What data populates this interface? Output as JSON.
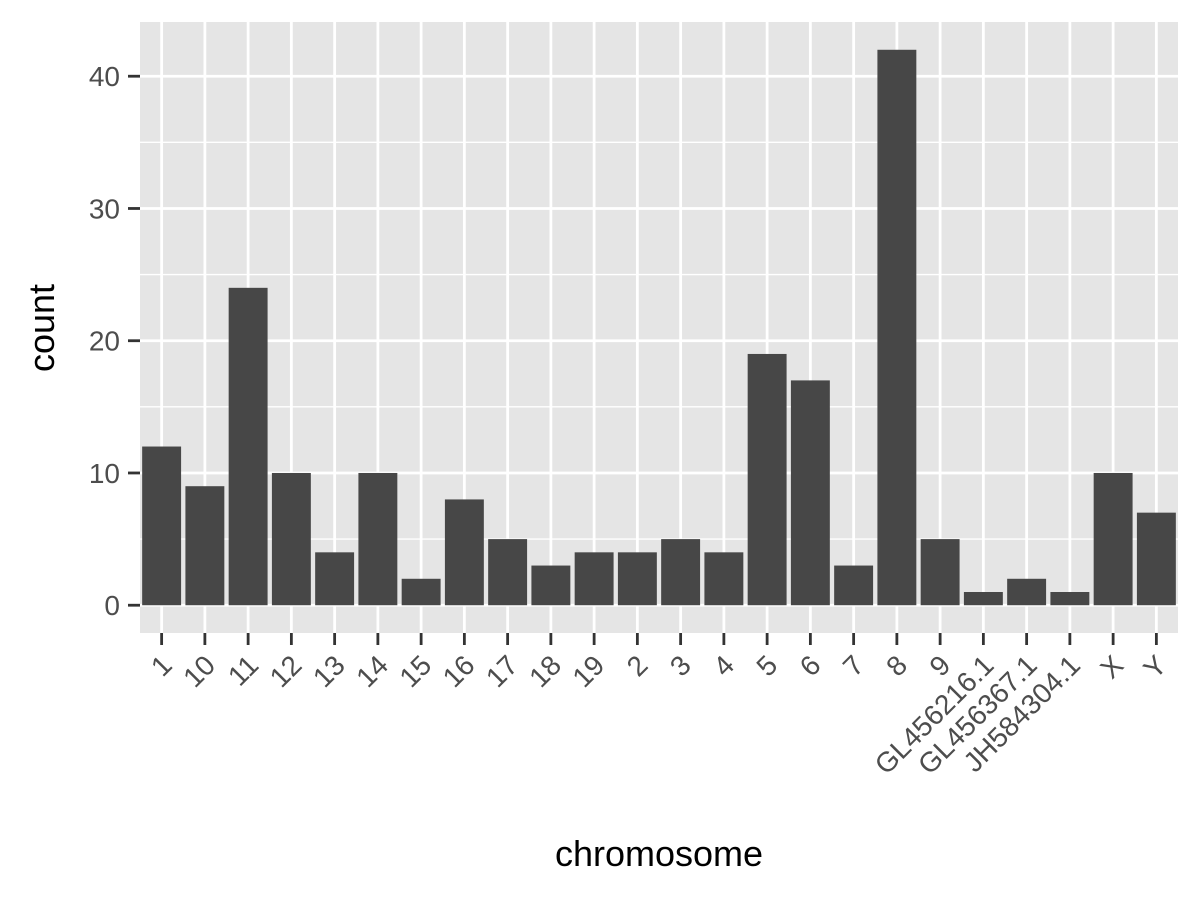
{
  "chart_data": {
    "type": "bar",
    "title": "",
    "xlabel": "chromosome",
    "ylabel": "count",
    "categories": [
      "1",
      "10",
      "11",
      "12",
      "13",
      "14",
      "15",
      "16",
      "17",
      "18",
      "19",
      "2",
      "3",
      "4",
      "5",
      "6",
      "7",
      "8",
      "9",
      "GL456216.1",
      "GL456367.1",
      "JH584304.1",
      "X",
      "Y"
    ],
    "values": [
      12,
      9,
      24,
      10,
      4,
      10,
      2,
      8,
      5,
      3,
      4,
      4,
      5,
      4,
      19,
      17,
      3,
      42,
      5,
      1,
      2,
      1,
      10,
      7
    ],
    "ylim": [
      -2.1,
      44.1
    ],
    "yticks": [
      0,
      10,
      20,
      30,
      40
    ],
    "grid": true,
    "legend": "none",
    "colors": {
      "bar": "#474747",
      "panel": "#e5e5e5",
      "grid": "#ffffff",
      "axis_text": "#4d4d4d",
      "axis_title": "#000000"
    }
  }
}
